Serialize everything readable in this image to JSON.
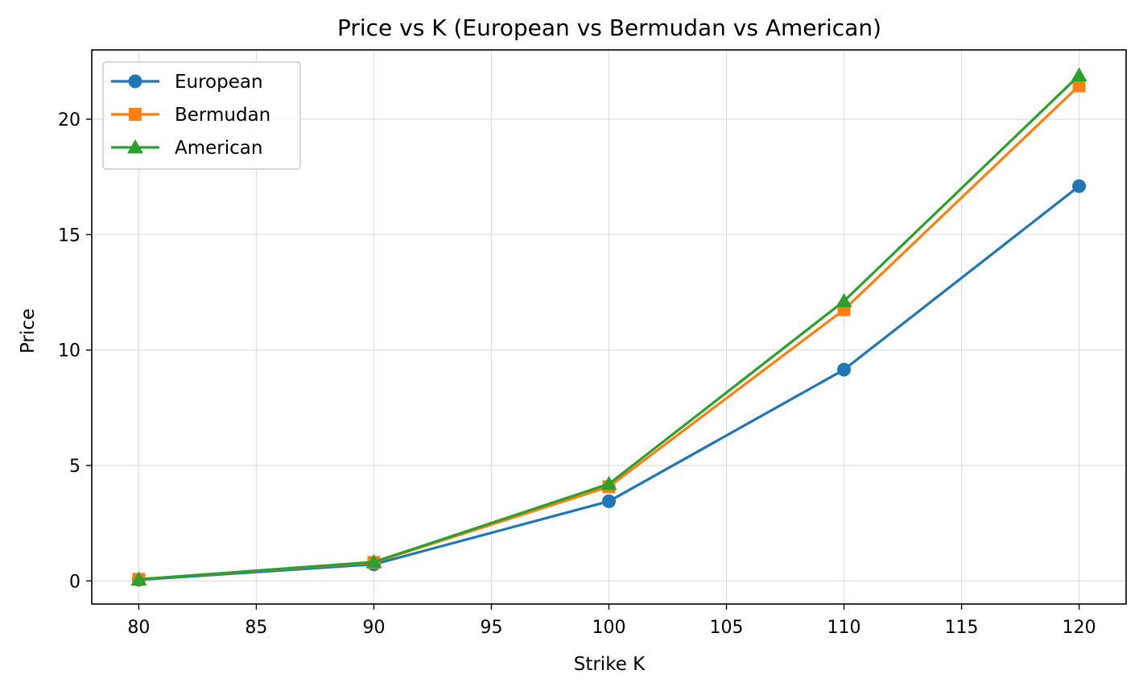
{
  "chart_data": {
    "type": "line",
    "title": "Price vs K (European vs Bermudan vs American)",
    "xlabel": "Strike K",
    "ylabel": "Price",
    "x": [
      80,
      90,
      100,
      110,
      120
    ],
    "xlim": [
      78,
      122
    ],
    "ylim": [
      -1,
      23
    ],
    "xticks": [
      80,
      85,
      90,
      95,
      100,
      105,
      110,
      115,
      120
    ],
    "yticks": [
      0,
      5,
      10,
      15,
      20
    ],
    "grid": true,
    "legend": "top-left",
    "series": [
      {
        "name": "European",
        "marker": "circle",
        "color": "#1f77b4",
        "values": [
          0.05,
          0.72,
          3.45,
          9.15,
          17.1
        ]
      },
      {
        "name": "Bermudan",
        "marker": "square",
        "color": "#ff7f0e",
        "values": [
          0.07,
          0.8,
          4.08,
          11.75,
          21.45
        ]
      },
      {
        "name": "American",
        "marker": "triangle",
        "color": "#2ca02c",
        "values": [
          0.07,
          0.82,
          4.2,
          12.12,
          21.9
        ]
      }
    ]
  }
}
